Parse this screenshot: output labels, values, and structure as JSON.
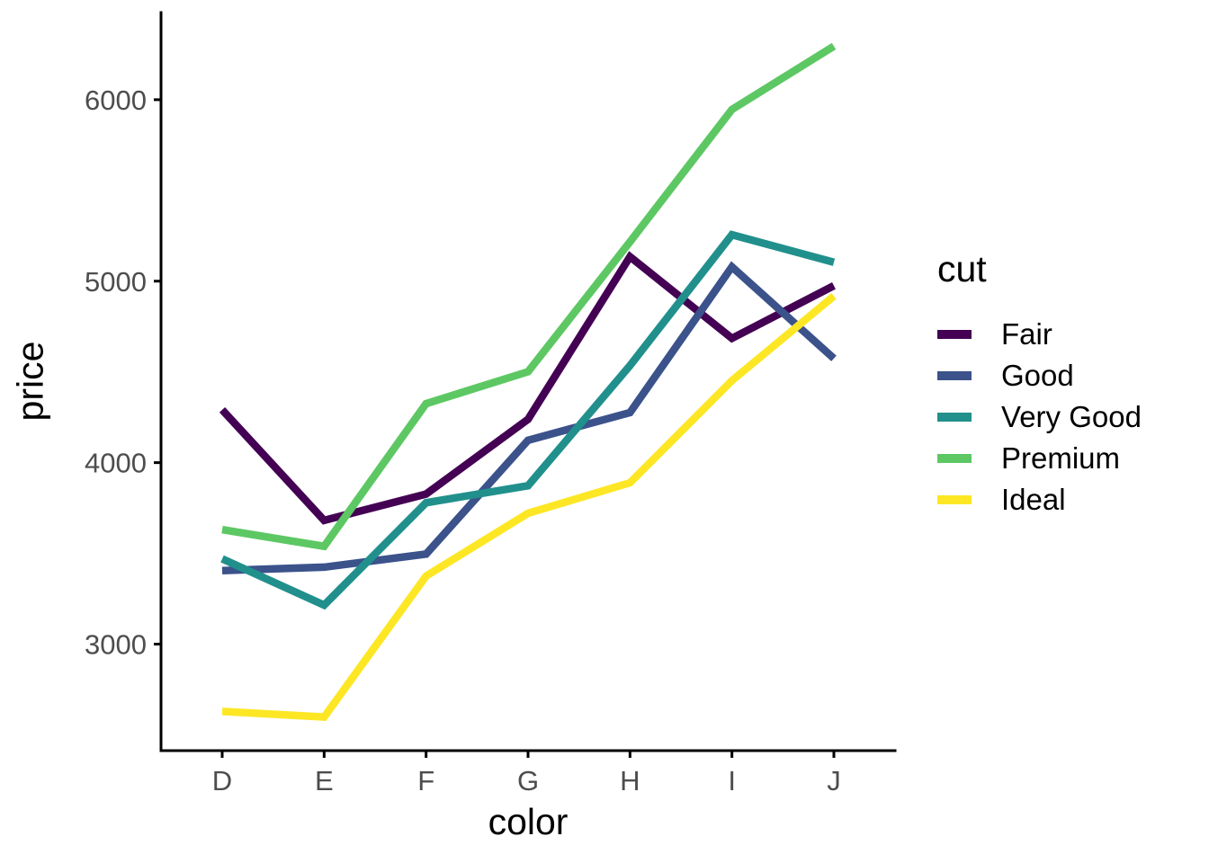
{
  "chart_data": {
    "type": "line",
    "title": "",
    "xlabel": "color",
    "ylabel": "price",
    "categories": [
      "D",
      "E",
      "F",
      "G",
      "H",
      "I",
      "J"
    ],
    "y_ticks": [
      3000,
      4000,
      5000,
      6000
    ],
    "ylim": [
      2413,
      6480
    ],
    "grid": false,
    "legend_title": "cut",
    "legend_position": "right",
    "tick_label_color": "#4D4D4D",
    "axis_color": "#000000",
    "series": [
      {
        "name": "Fair",
        "color": "#440154",
        "values": [
          4291,
          3682,
          3827,
          4239,
          5135,
          4685,
          4975
        ]
      },
      {
        "name": "Good",
        "color": "#3B528B",
        "values": [
          3405,
          3424,
          3496,
          4123,
          4276,
          5079,
          4574
        ]
      },
      {
        "name": "Very Good",
        "color": "#21908C",
        "values": [
          3470,
          3215,
          3779,
          3873,
          4535,
          5256,
          5104
        ]
      },
      {
        "name": "Premium",
        "color": "#5DC863",
        "values": [
          3631,
          3539,
          4325,
          4501,
          5217,
          5946,
          6295
        ]
      },
      {
        "name": "Ideal",
        "color": "#FDE725",
        "values": [
          2629,
          2598,
          3375,
          3721,
          3889,
          4452,
          4918
        ]
      }
    ]
  }
}
